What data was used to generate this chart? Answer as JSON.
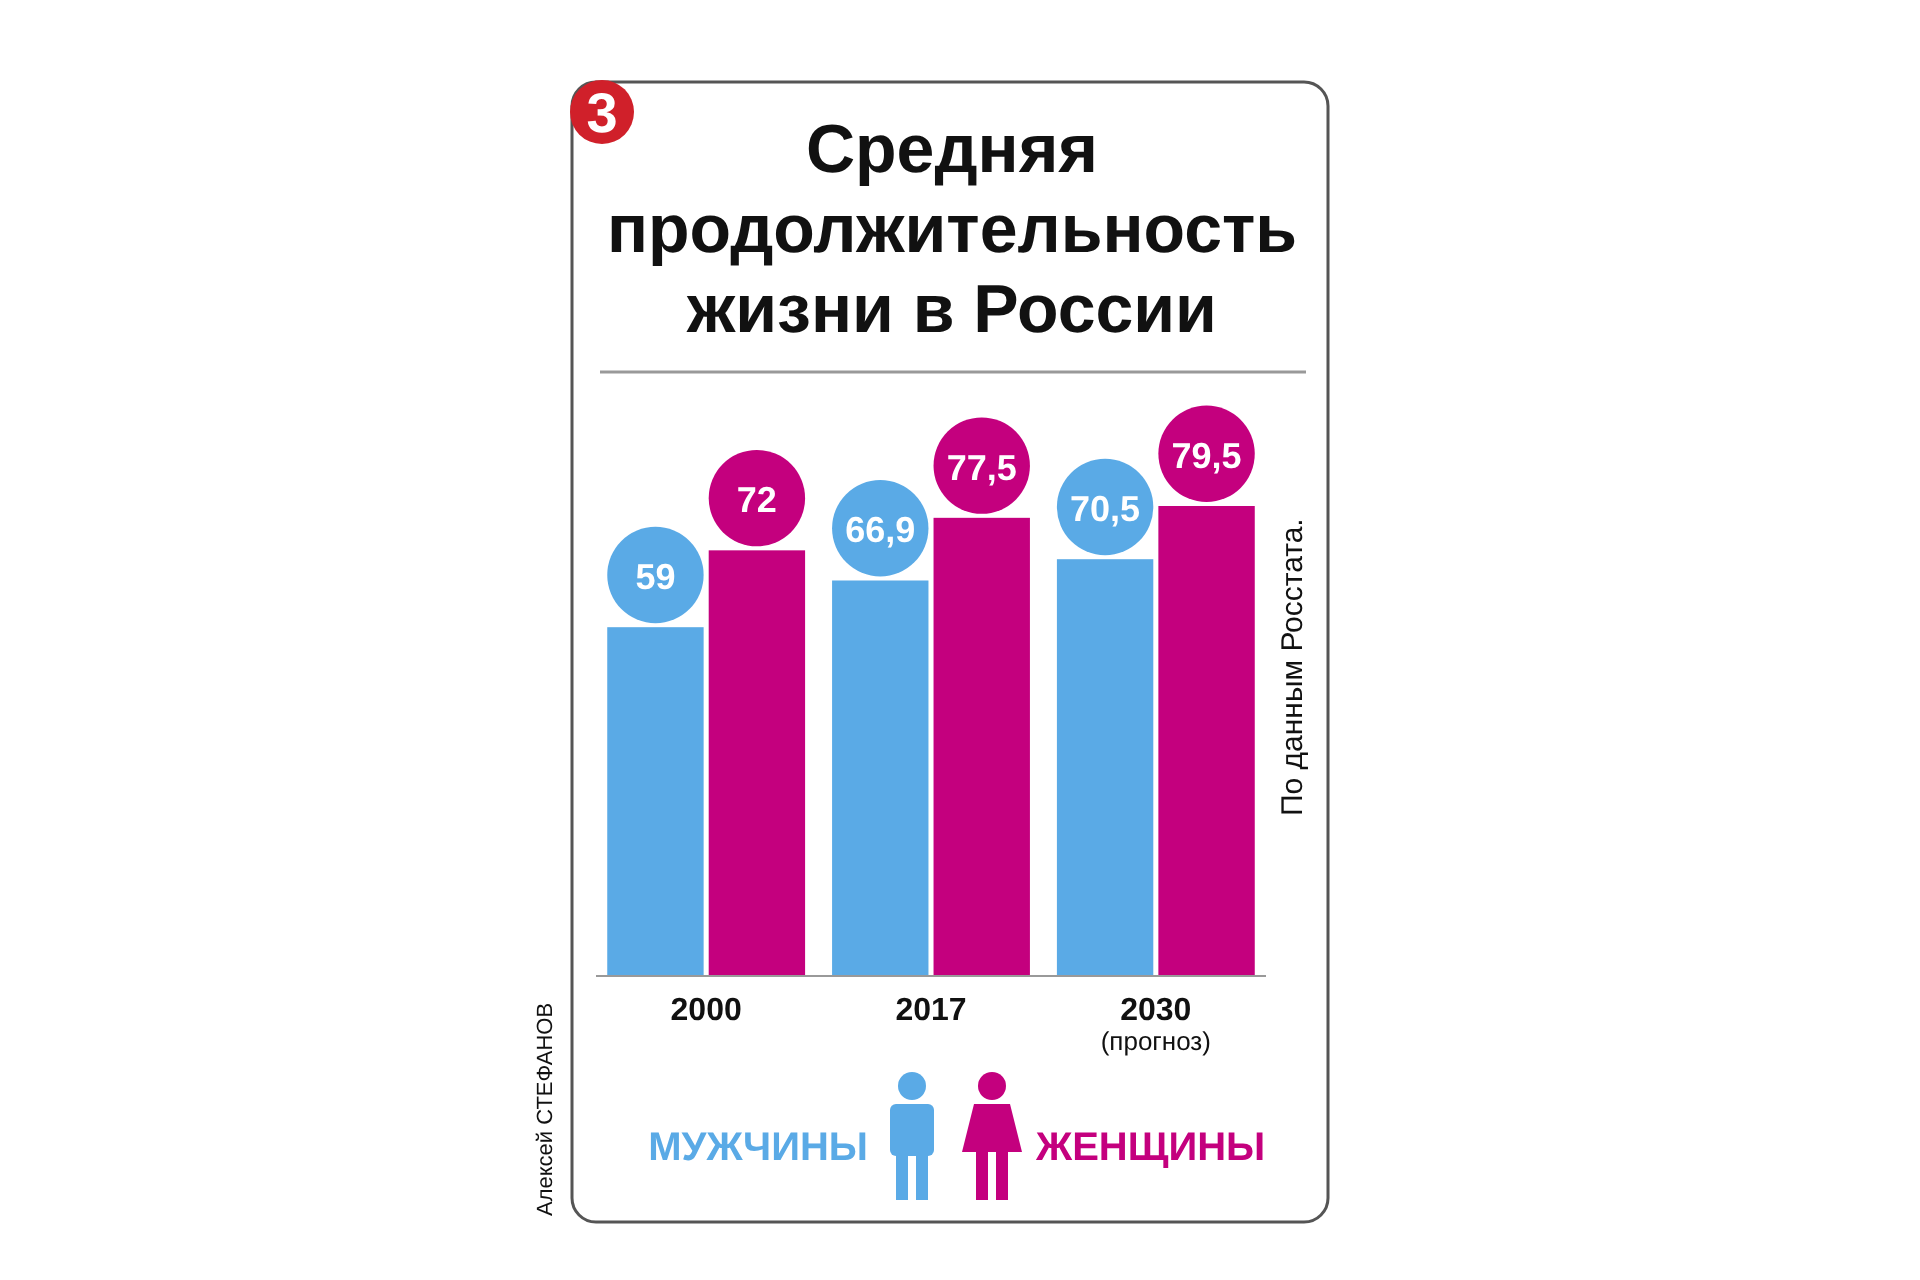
{
  "chart_data": {
    "type": "bar",
    "title": "Средняя продолжительность жизни в России",
    "categories": [
      "2000",
      "2017",
      "2030 (прогноз)"
    ],
    "series": [
      {
        "name": "МУЖЧИНЫ",
        "color": "#5aaae6",
        "values": [
          59,
          66.9,
          70.5
        ],
        "value_labels": [
          "59",
          "66,9",
          "70,5"
        ]
      },
      {
        "name": "ЖЕНЩИНЫ",
        "color": "#c4007e",
        "values": [
          72,
          77.5,
          79.5
        ],
        "value_labels": [
          "72",
          "77,5",
          "79,5"
        ]
      }
    ],
    "legend": "bottom",
    "annotations": [
      "3",
      "По данным Росстата.",
      "Алексей СТЕФАНОВ"
    ]
  }
}
